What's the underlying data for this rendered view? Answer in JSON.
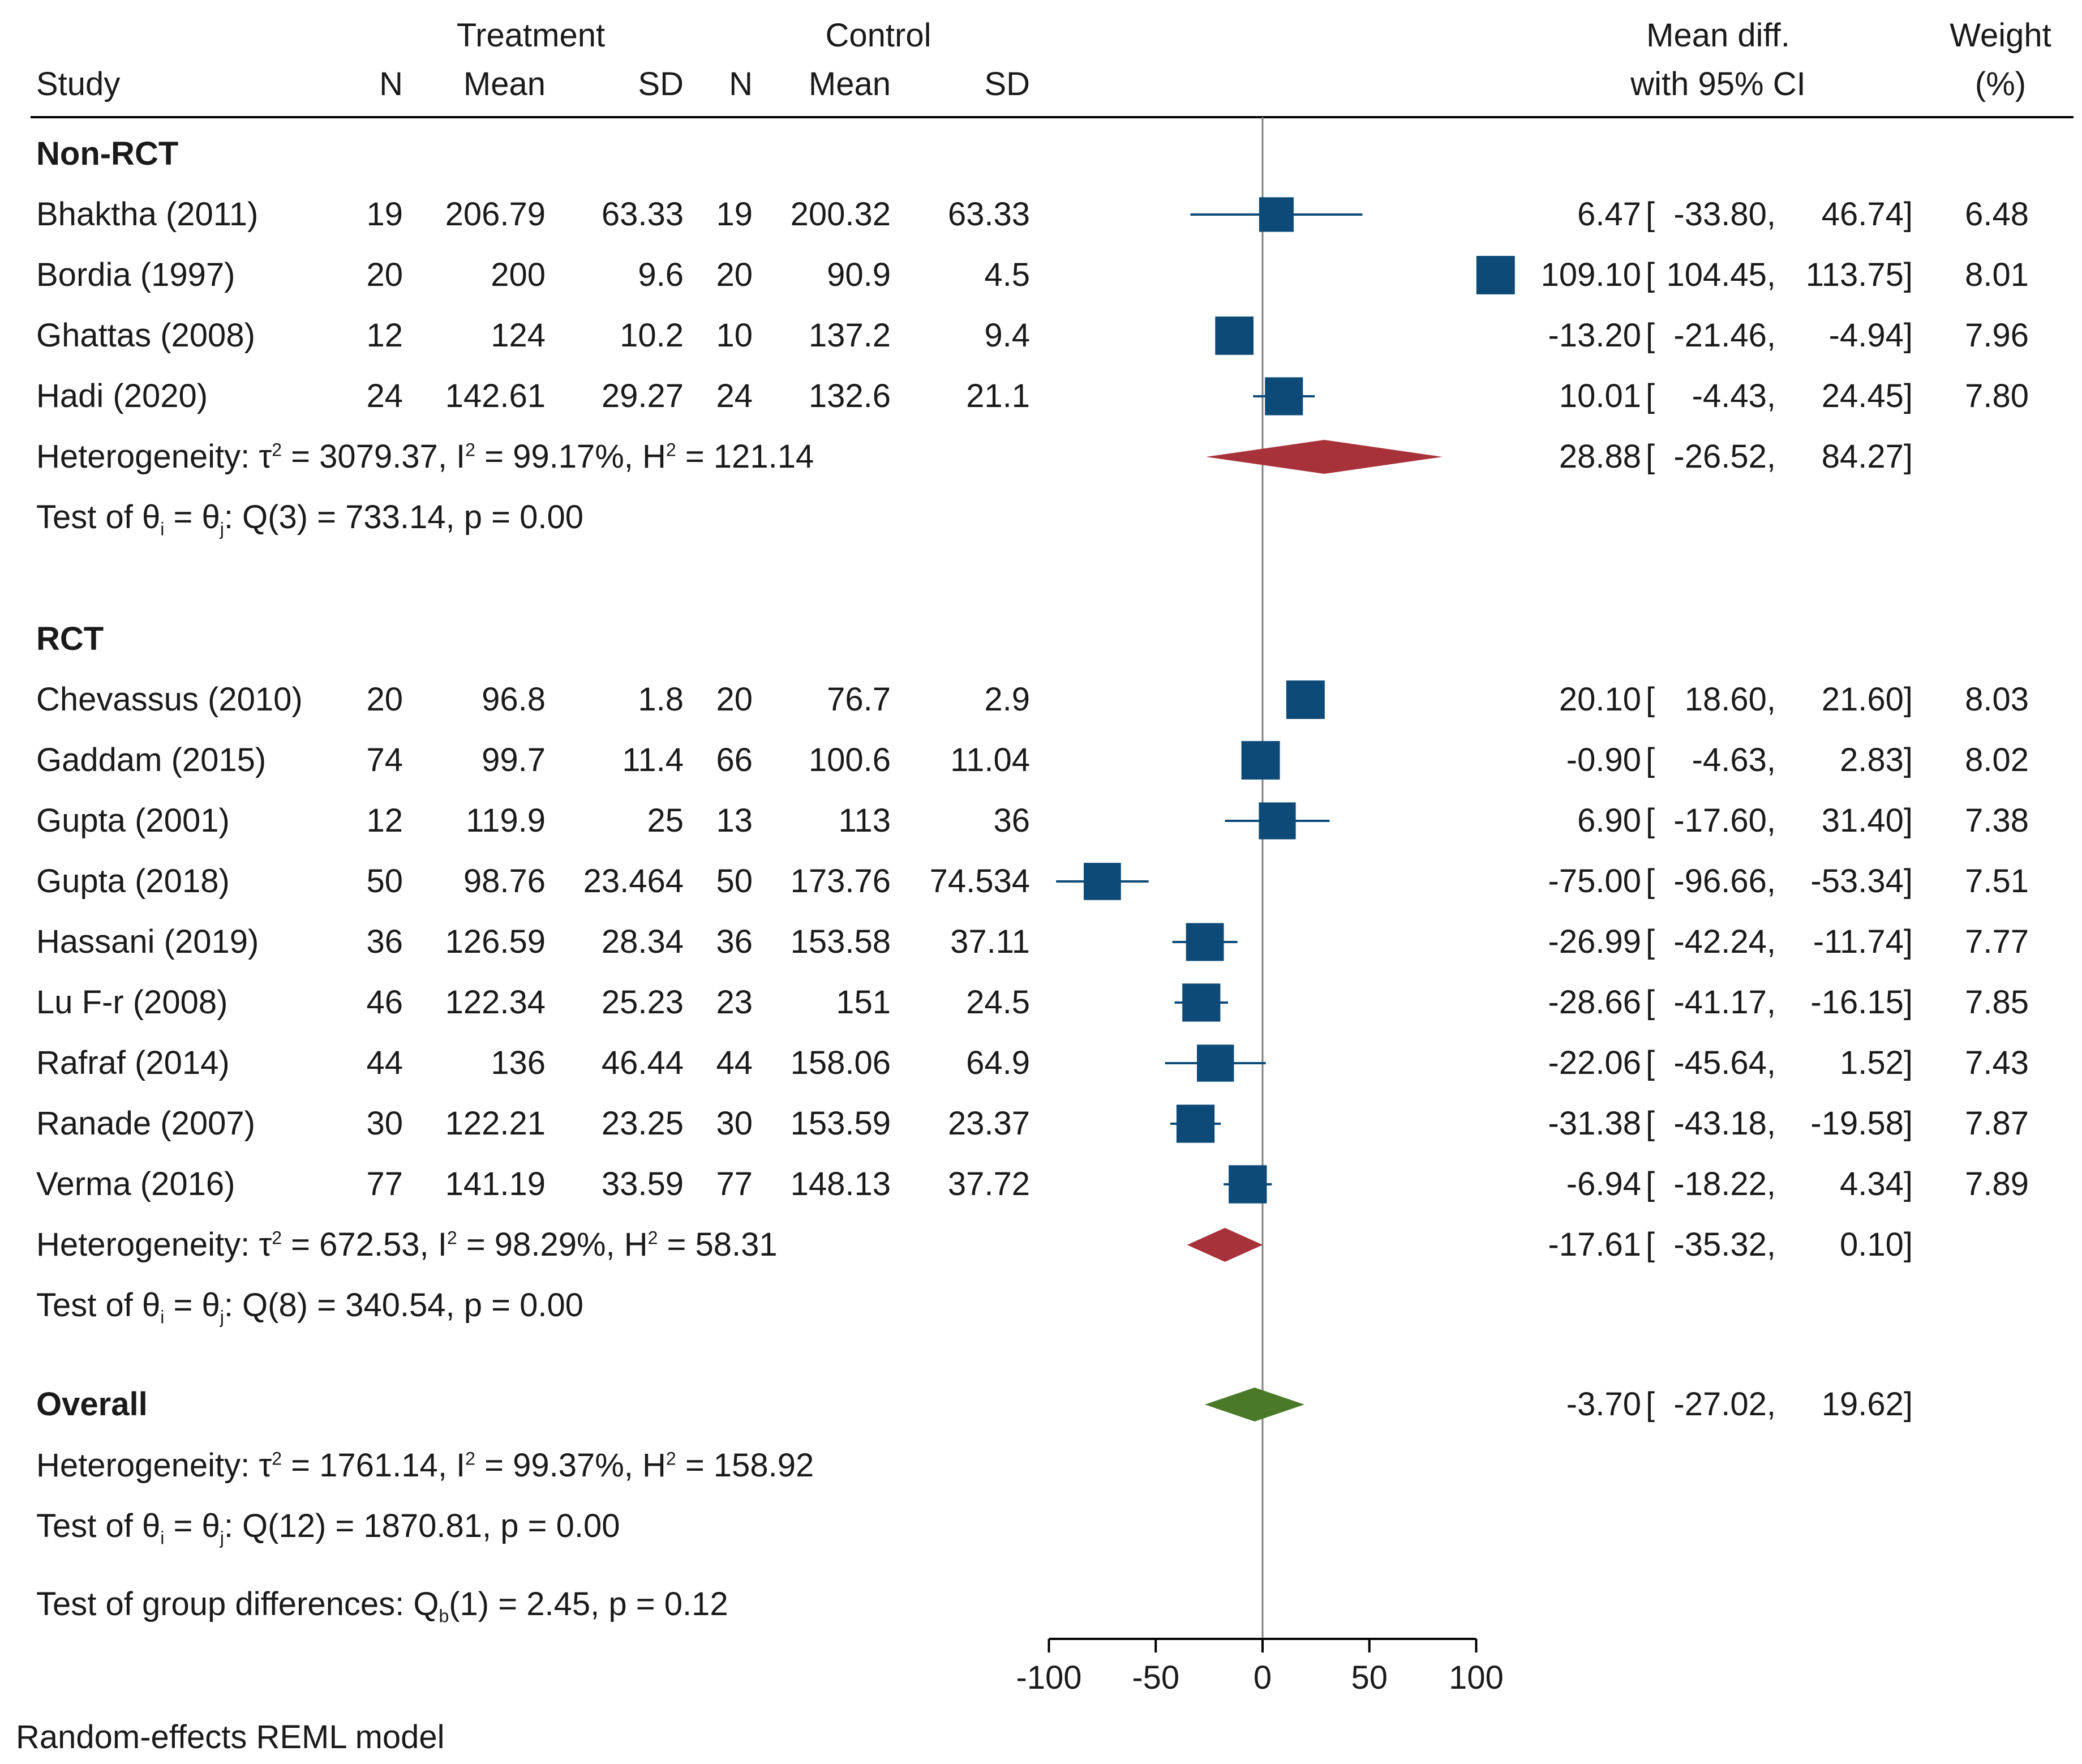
{
  "headers": {
    "treatment": "Treatment",
    "control": "Control",
    "study": "Study",
    "n": "N",
    "mean": "Mean",
    "sd": "SD",
    "effect_top": "Mean diff.",
    "effect_bottom": "with 95% CI",
    "weight_top": "Weight",
    "weight_bottom": "(%)"
  },
  "groups": [
    {
      "label": "Non-RCT",
      "het": {
        "pre": "Heterogeneity: τ",
        "sup1": "2",
        "mid1": " = 3079.37, I",
        "sup2": "2",
        "mid2": " = 99.17%, H",
        "sup3": "2",
        "post": " = 121.14"
      },
      "test": {
        "pre": "Test of θ",
        "sub1": "i",
        "mid": " = θ",
        "sub2": "j",
        "post": ": Q(3) = 733.14, p = 0.00"
      }
    },
    {
      "label": "RCT",
      "het": {
        "pre": "Heterogeneity: τ",
        "sup1": "2",
        "mid1": " = 672.53, I",
        "sup2": "2",
        "mid2": " = 98.29%, H",
        "sup3": "2",
        "post": " = 58.31"
      },
      "test": {
        "pre": "Test of θ",
        "sub1": "i",
        "mid": " = θ",
        "sub2": "j",
        "post": ": Q(8) = 340.54, p = 0.00"
      }
    }
  ],
  "overall": {
    "label": "Overall",
    "het": {
      "pre": "Heterogeneity: τ",
      "sup1": "2",
      "mid1": " = 1761.14, I",
      "sup2": "2",
      "mid2": " = 99.37%, H",
      "sup3": "2",
      "post": " = 158.92"
    },
    "test": {
      "pre": "Test of θ",
      "sub1": "i",
      "mid": " = θ",
      "sub2": "j",
      "post": ": Q(12) = 1870.81, p = 0.00"
    },
    "group_test": {
      "pre": "Test of group differences: Q",
      "sub": "b",
      "post": "(1) = 2.45, p = 0.12"
    }
  },
  "footer": "Random-effects REML model",
  "colors": {
    "study": "#0d4a78",
    "subgroup": "#a8323a",
    "overall": "#4a7a28",
    "axis": "#000000",
    "ref": "#7f7f7f"
  },
  "chart_data": {
    "type": "forest",
    "xlim": [
      -100,
      100
    ],
    "ticks": [
      "-100",
      "-50",
      "0",
      "50",
      "100"
    ],
    "tick_values": [
      -100,
      -50,
      0,
      50,
      100
    ],
    "studies": [
      {
        "group": "Non-RCT",
        "name": "Bhaktha (2011)",
        "t_n": "19",
        "t_mean": "206.79",
        "t_sd": "63.33",
        "c_n": "19",
        "c_mean": "200.32",
        "c_sd": "63.33",
        "est": 6.47,
        "lo": -33.8,
        "hi": 46.74,
        "est_txt": "6.47",
        "lo_txt": "-33.80,",
        "hi_txt": "46.74]",
        "weight": "6.48"
      },
      {
        "group": "Non-RCT",
        "name": "Bordia (1997)",
        "t_n": "20",
        "t_mean": "200",
        "t_sd": "9.6",
        "c_n": "20",
        "c_mean": "90.9",
        "c_sd": "4.5",
        "est": 109.1,
        "lo": 104.45,
        "hi": 113.75,
        "est_txt": "109.10",
        "lo_txt": "104.45,",
        "hi_txt": "113.75]",
        "weight": "8.01"
      },
      {
        "group": "Non-RCT",
        "name": "Ghattas (2008)",
        "t_n": "12",
        "t_mean": "124",
        "t_sd": "10.2",
        "c_n": "10",
        "c_mean": "137.2",
        "c_sd": "9.4",
        "est": -13.2,
        "lo": -21.46,
        "hi": -4.94,
        "est_txt": "-13.20",
        "lo_txt": "-21.46,",
        "hi_txt": "-4.94]",
        "weight": "7.96"
      },
      {
        "group": "Non-RCT",
        "name": "Hadi (2020)",
        "t_n": "24",
        "t_mean": "142.61",
        "t_sd": "29.27",
        "c_n": "24",
        "c_mean": "132.6",
        "c_sd": "21.1",
        "est": 10.01,
        "lo": -4.43,
        "hi": 24.45,
        "est_txt": "10.01",
        "lo_txt": "-4.43,",
        "hi_txt": "24.45]",
        "weight": "7.80"
      },
      {
        "group": "RCT",
        "name": "Chevassus (2010)",
        "t_n": "20",
        "t_mean": "96.8",
        "t_sd": "1.8",
        "c_n": "20",
        "c_mean": "76.7",
        "c_sd": "2.9",
        "est": 20.1,
        "lo": 18.6,
        "hi": 21.6,
        "est_txt": "20.10",
        "lo_txt": "18.60,",
        "hi_txt": "21.60]",
        "weight": "8.03"
      },
      {
        "group": "RCT",
        "name": "Gaddam (2015)",
        "t_n": "74",
        "t_mean": "99.7",
        "t_sd": "11.4",
        "c_n": "66",
        "c_mean": "100.6",
        "c_sd": "11.04",
        "est": -0.9,
        "lo": -4.63,
        "hi": 2.83,
        "est_txt": "-0.90",
        "lo_txt": "-4.63,",
        "hi_txt": "2.83]",
        "weight": "8.02"
      },
      {
        "group": "RCT",
        "name": "Gupta (2001)",
        "t_n": "12",
        "t_mean": "119.9",
        "t_sd": "25",
        "c_n": "13",
        "c_mean": "113",
        "c_sd": "36",
        "est": 6.9,
        "lo": -17.6,
        "hi": 31.4,
        "est_txt": "6.90",
        "lo_txt": "-17.60,",
        "hi_txt": "31.40]",
        "weight": "7.38"
      },
      {
        "group": "RCT",
        "name": "Gupta (2018)",
        "t_n": "50",
        "t_mean": "98.76",
        "t_sd": "23.464",
        "c_n": "50",
        "c_mean": "173.76",
        "c_sd": "74.534",
        "est": -75.0,
        "lo": -96.66,
        "hi": -53.34,
        "est_txt": "-75.00",
        "lo_txt": "-96.66,",
        "hi_txt": "-53.34]",
        "weight": "7.51"
      },
      {
        "group": "RCT",
        "name": "Hassani (2019)",
        "t_n": "36",
        "t_mean": "126.59",
        "t_sd": "28.34",
        "c_n": "36",
        "c_mean": "153.58",
        "c_sd": "37.11",
        "est": -26.99,
        "lo": -42.24,
        "hi": -11.74,
        "est_txt": "-26.99",
        "lo_txt": "-42.24,",
        "hi_txt": "-11.74]",
        "weight": "7.77"
      },
      {
        "group": "RCT",
        "name": "Lu F-r (2008)",
        "t_n": "46",
        "t_mean": "122.34",
        "t_sd": "25.23",
        "c_n": "23",
        "c_mean": "151",
        "c_sd": "24.5",
        "est": -28.66,
        "lo": -41.17,
        "hi": -16.15,
        "est_txt": "-28.66",
        "lo_txt": "-41.17,",
        "hi_txt": "-16.15]",
        "weight": "7.85"
      },
      {
        "group": "RCT",
        "name": "Rafraf (2014)",
        "t_n": "44",
        "t_mean": "136",
        "t_sd": "46.44",
        "c_n": "44",
        "c_mean": "158.06",
        "c_sd": "64.9",
        "est": -22.06,
        "lo": -45.64,
        "hi": 1.52,
        "est_txt": "-22.06",
        "lo_txt": "-45.64,",
        "hi_txt": "1.52]",
        "weight": "7.43"
      },
      {
        "group": "RCT",
        "name": "Ranade (2007)",
        "t_n": "30",
        "t_mean": "122.21",
        "t_sd": "23.25",
        "c_n": "30",
        "c_mean": "153.59",
        "c_sd": "23.37",
        "est": -31.38,
        "lo": -43.18,
        "hi": -19.58,
        "est_txt": "-31.38",
        "lo_txt": "-43.18,",
        "hi_txt": "-19.58]",
        "weight": "7.87"
      },
      {
        "group": "RCT",
        "name": "Verma (2016)",
        "t_n": "77",
        "t_mean": "141.19",
        "t_sd": "33.59",
        "c_n": "77",
        "c_mean": "148.13",
        "c_sd": "37.72",
        "est": -6.94,
        "lo": -18.22,
        "hi": 4.34,
        "est_txt": "-6.94",
        "lo_txt": "-18.22,",
        "hi_txt": "4.34]",
        "weight": "7.89"
      }
    ],
    "subgroup_summaries": [
      {
        "group": "Non-RCT",
        "est": 28.88,
        "lo": -26.52,
        "hi": 84.27,
        "est_txt": "28.88",
        "lo_txt": "-26.52,",
        "hi_txt": "84.27]"
      },
      {
        "group": "RCT",
        "est": -17.61,
        "lo": -35.32,
        "hi": 0.1,
        "est_txt": "-17.61",
        "lo_txt": "-35.32,",
        "hi_txt": "0.10]"
      }
    ],
    "overall_summary": {
      "est": -3.7,
      "lo": -27.02,
      "hi": 19.62,
      "est_txt": "-3.70",
      "lo_txt": "-27.02,",
      "hi_txt": "19.62]"
    },
    "bracket": "["
  }
}
